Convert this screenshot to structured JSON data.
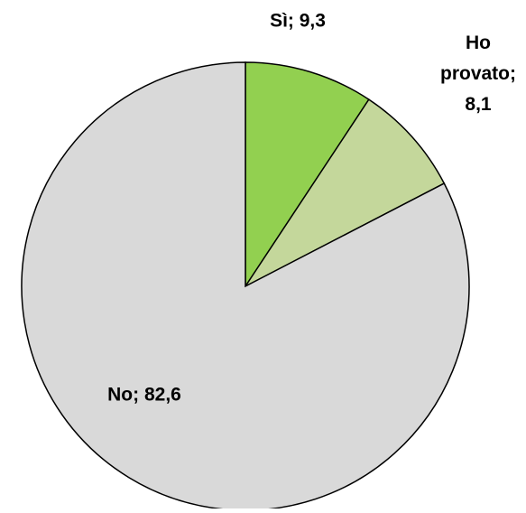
{
  "chart_data": {
    "type": "pie",
    "values": [
      9.3,
      8.1,
      82.6
    ],
    "value_labels": [
      "Sì; 9,3",
      "Ho provato; 8,1",
      "No; 82,6"
    ],
    "colors": [
      "#92d050",
      "#c4d79b",
      "#d9d9d9"
    ]
  }
}
